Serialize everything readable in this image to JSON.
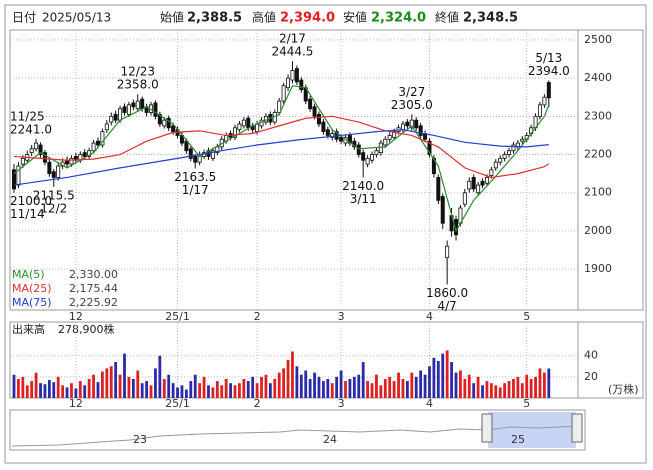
{
  "header": {
    "date_label": "日付",
    "date": "2025/05/13",
    "items": [
      {
        "label": "始値",
        "value": "2,388.5"
      },
      {
        "label": "高値",
        "value": "2,394.0"
      },
      {
        "label": "安値",
        "value": "2,324.0"
      },
      {
        "label": "終値",
        "value": "2,348.5"
      }
    ]
  },
  "chart_data": {
    "type": "candlestick",
    "categories": [
      null,
      null,
      null,
      null,
      null,
      null,
      null,
      null,
      null,
      null,
      null,
      null,
      null,
      null,
      "12",
      null,
      null,
      null,
      null,
      null,
      null,
      null,
      null,
      null,
      null,
      null,
      null,
      null,
      null,
      null,
      null,
      null,
      null,
      null,
      null,
      null,
      null,
      "25/1",
      null,
      null,
      null,
      null,
      null,
      null,
      null,
      null,
      null,
      null,
      null,
      null,
      null,
      null,
      null,
      null,
      null,
      "2",
      null,
      null,
      null,
      null,
      null,
      null,
      null,
      null,
      null,
      null,
      null,
      null,
      null,
      null,
      null,
      null,
      null,
      null,
      "3",
      null,
      null,
      null,
      null,
      null,
      null,
      null,
      null,
      null,
      null,
      null,
      null,
      null,
      null,
      null,
      null,
      null,
      null,
      null,
      "4",
      null,
      null,
      null,
      null,
      null,
      null,
      null,
      null,
      null,
      null,
      null,
      null,
      null,
      null,
      null,
      null,
      null,
      null,
      null,
      null,
      null,
      "5",
      null,
      null,
      null,
      null,
      null
    ],
    "open": [
      2160,
      2120,
      2175,
      2185,
      2205,
      2215,
      2225,
      2205,
      2180,
      2155,
      2140,
      2170,
      2185,
      2175,
      2195,
      2185,
      2205,
      2195,
      2210,
      2235,
      2225,
      2265,
      2285,
      2305,
      2290,
      2325,
      2305,
      2335,
      2320,
      2345,
      2325,
      2310,
      2335,
      2305,
      2275,
      2295,
      2275,
      2265,
      2250,
      2235,
      2215,
      2195,
      2180,
      2195,
      2210,
      2190,
      2205,
      2220,
      2235,
      2255,
      2245,
      2265,
      2275,
      2295,
      2275,
      2260,
      2275,
      2285,
      2305,
      2285,
      2310,
      2340,
      2375,
      2395,
      2425,
      2395,
      2375,
      2345,
      2325,
      2305,
      2285,
      2265,
      2245,
      2260,
      2245,
      2230,
      2250,
      2235,
      2225,
      2205,
      2175,
      2185,
      2200,
      2205,
      2225,
      2240,
      2245,
      2260,
      2265,
      2285,
      2270,
      2290,
      2275,
      2255,
      2235,
      2190,
      2140,
      2090,
      1930,
      2040,
      2030,
      2020,
      2070,
      2110,
      2140,
      2100,
      2130,
      2125,
      2145,
      2165,
      2180,
      2190,
      2200,
      2210,
      2220,
      2235,
      2240,
      2255,
      2270,
      2300,
      2330,
      2388.5
    ],
    "high": [
      2175,
      2180,
      2198,
      2210,
      2225,
      2241,
      2232,
      2212,
      2188,
      2162,
      2178,
      2190,
      2195,
      2198,
      2205,
      2208,
      2214,
      2218,
      2238,
      2245,
      2268,
      2290,
      2310,
      2315,
      2328,
      2334,
      2338,
      2344,
      2358,
      2352,
      2333,
      2338,
      2342,
      2312,
      2298,
      2302,
      2283,
      2273,
      2258,
      2242,
      2222,
      2202,
      2208,
      2213,
      2218,
      2218,
      2228,
      2248,
      2258,
      2263,
      2278,
      2288,
      2298,
      2302,
      2283,
      2288,
      2298,
      2308,
      2313,
      2318,
      2348,
      2388,
      2410,
      2444.5,
      2433,
      2403,
      2383,
      2353,
      2333,
      2313,
      2293,
      2273,
      2263,
      2268,
      2253,
      2253,
      2258,
      2243,
      2233,
      2213,
      2198,
      2208,
      2218,
      2238,
      2248,
      2258,
      2268,
      2278,
      2288,
      2293,
      2305,
      2298,
      2283,
      2263,
      2243,
      2198,
      2148,
      2098,
      1975,
      2060,
      2040,
      2068,
      2110,
      2140,
      2148,
      2128,
      2138,
      2148,
      2168,
      2188,
      2198,
      2208,
      2218,
      2233,
      2238,
      2248,
      2258,
      2278,
      2308,
      2338,
      2358,
      2394
    ],
    "low": [
      2100,
      2112,
      2165,
      2178,
      2196,
      2208,
      2192,
      2172,
      2142,
      2115.5,
      2132,
      2162,
      2166,
      2168,
      2176,
      2178,
      2186,
      2188,
      2202,
      2216,
      2218,
      2256,
      2276,
      2282,
      2283,
      2302,
      2298,
      2316,
      2312,
      2312,
      2300,
      2302,
      2292,
      2272,
      2268,
      2262,
      2252,
      2242,
      2222,
      2202,
      2182,
      2163.5,
      2172,
      2188,
      2186,
      2183,
      2198,
      2212,
      2228,
      2237,
      2238,
      2258,
      2268,
      2262,
      2256,
      2252,
      2268,
      2278,
      2277,
      2278,
      2302,
      2332,
      2366,
      2386,
      2382,
      2362,
      2332,
      2312,
      2292,
      2272,
      2252,
      2242,
      2237,
      2232,
      2227,
      2222,
      2222,
      2212,
      2192,
      2140,
      2167,
      2177,
      2192,
      2197,
      2217,
      2232,
      2237,
      2252,
      2257,
      2267,
      2262,
      2262,
      2242,
      2232,
      2192,
      2140,
      2070,
      2005,
      1860,
      1985,
      1975,
      2012,
      2062,
      2100,
      2102,
      2092,
      2112,
      2117,
      2137,
      2157,
      2172,
      2182,
      2192,
      2202,
      2212,
      2227,
      2232,
      2247,
      2262,
      2292,
      2322,
      2324
    ],
    "close": [
      2110,
      2170,
      2190,
      2200,
      2215,
      2230,
      2200,
      2180,
      2150,
      2140,
      2170,
      2180,
      2175,
      2190,
      2185,
      2200,
      2195,
      2210,
      2230,
      2225,
      2260,
      2280,
      2300,
      2290,
      2320,
      2310,
      2330,
      2325,
      2340,
      2320,
      2310,
      2330,
      2300,
      2280,
      2290,
      2270,
      2260,
      2250,
      2230,
      2210,
      2190,
      2180,
      2200,
      2205,
      2195,
      2210,
      2220,
      2240,
      2250,
      2245,
      2270,
      2280,
      2290,
      2270,
      2265,
      2280,
      2290,
      2300,
      2285,
      2310,
      2340,
      2380,
      2400,
      2420,
      2390,
      2370,
      2340,
      2320,
      2300,
      2280,
      2260,
      2250,
      2255,
      2240,
      2235,
      2245,
      2230,
      2220,
      2200,
      2185,
      2190,
      2200,
      2210,
      2230,
      2240,
      2250,
      2260,
      2270,
      2280,
      2275,
      2290,
      2270,
      2250,
      2240,
      2200,
      2150,
      2080,
      2020,
      1960,
      2000,
      1990,
      2060,
      2100,
      2130,
      2110,
      2120,
      2120,
      2140,
      2160,
      2180,
      2190,
      2200,
      2210,
      2225,
      2230,
      2240,
      2250,
      2270,
      2300,
      2330,
      2350,
      2348.5
    ],
    "volume": [
      22,
      18,
      20,
      12,
      16,
      24,
      14,
      13,
      17,
      15,
      20,
      12,
      10,
      14,
      9,
      16,
      12,
      18,
      22,
      15,
      25,
      28,
      30,
      34,
      22,
      42,
      20,
      18,
      26,
      14,
      16,
      12,
      28,
      40,
      18,
      22,
      14,
      10,
      12,
      8,
      16,
      22,
      14,
      20,
      12,
      10,
      16,
      12,
      18,
      14,
      12,
      14,
      18,
      16,
      20,
      14,
      20,
      22,
      14,
      18,
      24,
      28,
      36,
      44,
      30,
      22,
      26,
      18,
      24,
      20,
      16,
      18,
      14,
      20,
      26,
      16,
      18,
      20,
      22,
      34,
      16,
      14,
      22,
      12,
      18,
      20,
      16,
      24,
      18,
      16,
      24,
      20,
      26,
      22,
      30,
      38,
      35,
      42,
      45,
      34,
      24,
      26,
      18,
      22,
      14,
      20,
      12,
      16,
      14,
      12,
      10,
      14,
      16,
      18,
      20,
      14,
      22,
      18,
      20,
      28,
      24,
      27.89
    ],
    "up_color": "#ffffff",
    "down_color": "#111111",
    "volume_up_color": "#e02020",
    "volume_down_color": "#2a2aa8",
    "ylim": [
      1793,
      2526
    ],
    "yticks": [
      1900,
      2000,
      2100,
      2200,
      2300,
      2400,
      2500
    ],
    "volume_ylim": [
      0,
      70
    ],
    "volume_yticks": [
      20,
      40
    ],
    "volume_title": "出来高",
    "volume_total": "278,900株",
    "volume_unit": "(万株)",
    "grid": true,
    "moving_averages": [
      {
        "name": "MA(5)",
        "color": "#2e8b2e",
        "legend_value": "2,330.00",
        "x": [
          0,
          6,
          12,
          18,
          24,
          30,
          36,
          42,
          48,
          54,
          60,
          63,
          66,
          72,
          78,
          84,
          90,
          96,
          100,
          104,
          108,
          114,
          120,
          121
        ],
        "values": [
          2150,
          2205,
          2165,
          2205,
          2290,
          2325,
          2280,
          2195,
          2235,
          2275,
          2305,
          2380,
          2375,
          2265,
          2215,
          2220,
          2275,
          2170,
          2000,
          2080,
          2130,
          2210,
          2300,
          2330
        ]
      },
      {
        "name": "MA(25)",
        "color": "#e03030",
        "legend_value": "2,175.44",
        "x": [
          0,
          6,
          12,
          18,
          24,
          30,
          36,
          42,
          48,
          54,
          60,
          66,
          72,
          78,
          84,
          90,
          96,
          102,
          108,
          114,
          120,
          121
        ],
        "values": [
          2195,
          2190,
          2185,
          2188,
          2200,
          2235,
          2258,
          2262,
          2250,
          2255,
          2275,
          2295,
          2300,
          2285,
          2262,
          2250,
          2220,
          2165,
          2140,
          2150,
          2168,
          2175.44
        ]
      },
      {
        "name": "MA(75)",
        "color": "#2040d0",
        "legend_value": "2,225.92",
        "x": [
          0,
          12,
          24,
          37,
          48,
          55,
          64,
          74,
          82,
          88,
          95,
          102,
          110,
          116,
          121
        ],
        "values": [
          2120,
          2140,
          2165,
          2190,
          2212,
          2225,
          2238,
          2250,
          2260,
          2265,
          2250,
          2232,
          2222,
          2220,
          2225.92
        ]
      }
    ],
    "annotations": [
      {
        "date": "11/14",
        "value": "2100.0",
        "index": 0,
        "at": "low"
      },
      {
        "date": "11/25",
        "value": "2241.0",
        "index": 5,
        "at": "high"
      },
      {
        "date": "12/2",
        "value": "2115.5",
        "index": 9,
        "at": "low"
      },
      {
        "date": "12/23",
        "value": "2358.0",
        "index": 28,
        "at": "high"
      },
      {
        "date": "1/17",
        "value": "2163.5",
        "index": 41,
        "at": "low"
      },
      {
        "date": "2/17",
        "value": "2444.5",
        "index": 63,
        "at": "high"
      },
      {
        "date": "3/11",
        "value": "2140.0",
        "index": 79,
        "at": "low"
      },
      {
        "date": "3/27",
        "value": "2305.0",
        "index": 90,
        "at": "high"
      },
      {
        "date": "4/7",
        "value": "1860.0",
        "index": 98,
        "at": "low"
      },
      {
        "date": "5/13",
        "value": "2394.0",
        "index": 121,
        "at": "high"
      }
    ],
    "navigator_labels": [
      "23",
      "24",
      "25"
    ]
  }
}
